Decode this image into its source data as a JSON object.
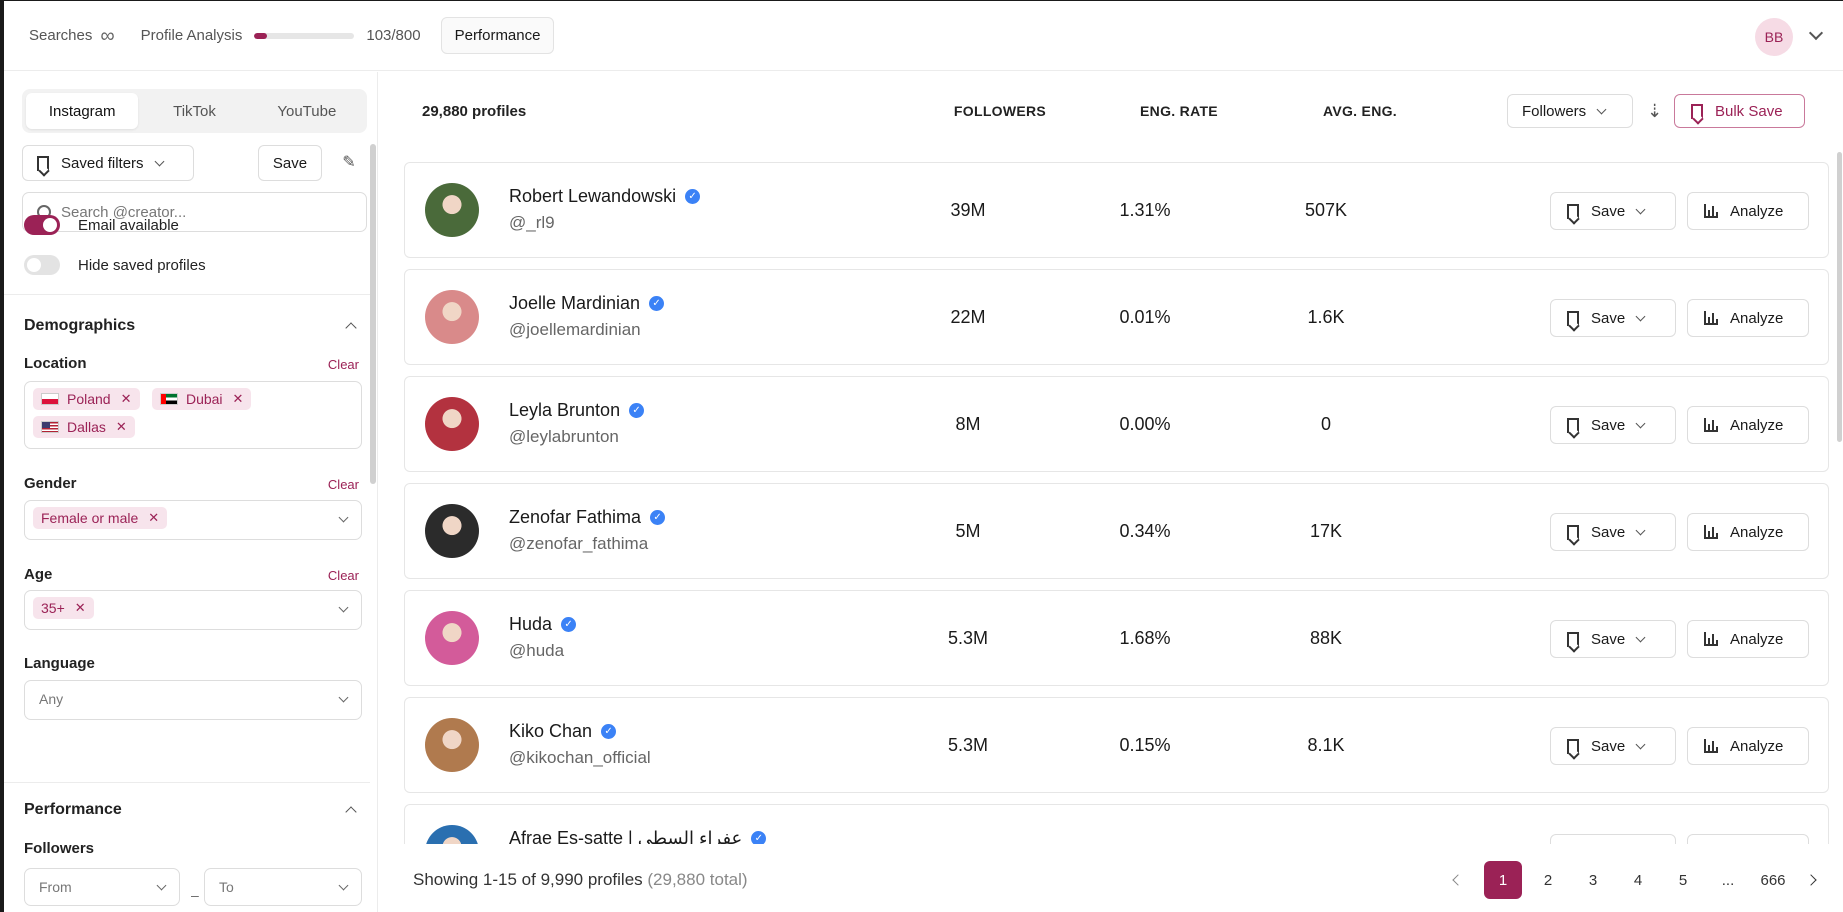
{
  "topbar": {
    "searches_label": "Searches",
    "profile_analysis_label": "Profile Analysis",
    "profile_analysis_progress": 0.129,
    "profile_analysis_count": "103/800",
    "performance_label": "Performance",
    "user_initials": "BB"
  },
  "sidebar": {
    "platforms": [
      "Instagram",
      "TikTok",
      "YouTube"
    ],
    "active_platform": "Instagram",
    "saved_filters_label": "Saved filters",
    "save_label": "Save",
    "search_placeholder": "Search @creator...",
    "email_available_label": "Email available",
    "email_available_on": true,
    "hide_saved_label": "Hide saved profiles",
    "hide_saved_on": false,
    "demographics_title": "Demographics",
    "location_label": "Location",
    "location_clear": "Clear",
    "locations": [
      "Poland",
      "Dubai",
      "Dallas"
    ],
    "gender_label": "Gender",
    "gender_clear": "Clear",
    "gender_value": "Female or male",
    "age_label": "Age",
    "age_clear": "Clear",
    "age_value": "35+",
    "language_label": "Language",
    "language_value": "Any",
    "performance_title": "Performance",
    "followers_label": "Followers",
    "followers_from": "From",
    "followers_to": "To"
  },
  "list": {
    "profile_count": "29,880 profiles",
    "col_followers": "FOLLOWERS",
    "col_eng_rate": "ENG. RATE",
    "col_avg_eng": "AVG. ENG.",
    "sort_label": "Followers",
    "bulk_save_label": "Bulk Save",
    "save_label": "Save",
    "analyze_label": "Analyze",
    "rows": [
      {
        "name": "Robert Lewandowski",
        "handle": "@_rl9",
        "followers": "39M",
        "eng_rate": "1.31%",
        "avg_eng": "507K",
        "color": "#4a6a3a"
      },
      {
        "name": "Joelle Mardinian",
        "handle": "@joellemardinian",
        "followers": "22M",
        "eng_rate": "0.01%",
        "avg_eng": "1.6K",
        "color": "#d98a8a"
      },
      {
        "name": "Leyla Brunton",
        "handle": "@leylabrunton",
        "followers": "8M",
        "eng_rate": "0.00%",
        "avg_eng": "0",
        "color": "#b3323f"
      },
      {
        "name": "Zenofar Fathima",
        "handle": "@zenofar_fathima",
        "followers": "5M",
        "eng_rate": "0.34%",
        "avg_eng": "17K",
        "color": "#2b2b2b"
      },
      {
        "name": "Huda",
        "handle": "@huda",
        "followers": "5.3M",
        "eng_rate": "1.68%",
        "avg_eng": "88K",
        "color": "#d35b9a"
      },
      {
        "name": "Kiko Chan",
        "handle": "@kikochan_official",
        "followers": "5.3M",
        "eng_rate": "0.15%",
        "avg_eng": "8.1K",
        "color": "#b07a4e"
      },
      {
        "name": "Afrae Es-satte | عفراء السطي",
        "handle": "",
        "followers": "",
        "eng_rate": "",
        "avg_eng": "",
        "color": "#2a6fb0"
      }
    ]
  },
  "footer": {
    "showing": "Showing 1-15 of 9,990 profiles",
    "total": "(29,880 total)",
    "pages": [
      "1",
      "2",
      "3",
      "4",
      "5",
      "...",
      "666"
    ],
    "active_page": "1"
  }
}
